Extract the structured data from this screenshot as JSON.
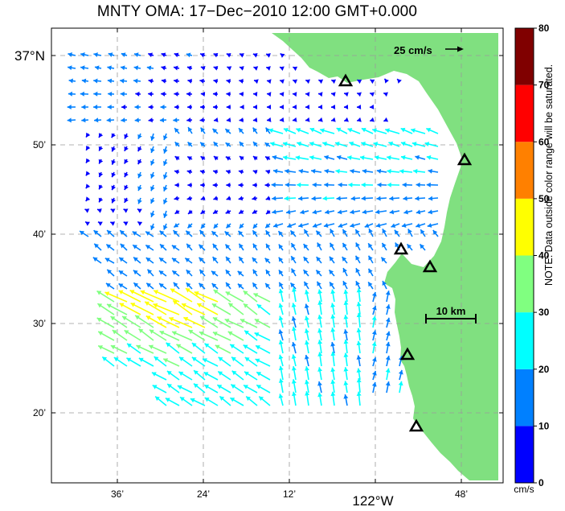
{
  "title": "MNTY OMA: 17−Dec−2010 12:00 GMT+0.000",
  "lat_labels": [
    {
      "text": "37°N",
      "big": true
    },
    {
      "text": "50’"
    },
    {
      "text": "40’"
    },
    {
      "text": "30’"
    },
    {
      "text": "20’"
    }
  ],
  "lon_labels": [
    {
      "text": "36’"
    },
    {
      "text": "24’"
    },
    {
      "text": "12’"
    },
    {
      "text": "122°W",
      "big": true
    },
    {
      "text": "48’"
    }
  ],
  "reference_vector": {
    "label": "25 cm/s",
    "speed_cm_s": 25
  },
  "scale_bar": {
    "label": "10 km"
  },
  "colorbar": {
    "ticks": [
      "0",
      "10",
      "20",
      "30",
      "40",
      "50",
      "60",
      "70",
      "80"
    ],
    "colors": [
      "#0000ff",
      "#0080ff",
      "#00ffff",
      "#80ff80",
      "#ffff00",
      "#ff8000",
      "#ff0000",
      "#800000"
    ],
    "unit": "cm/s",
    "note": "NOTE: Data outside color range will be saturated."
  },
  "colors": {
    "land": "#80e080",
    "coast_dots": "#2a7a2a"
  },
  "station_icon": "triangle-station-icon"
}
